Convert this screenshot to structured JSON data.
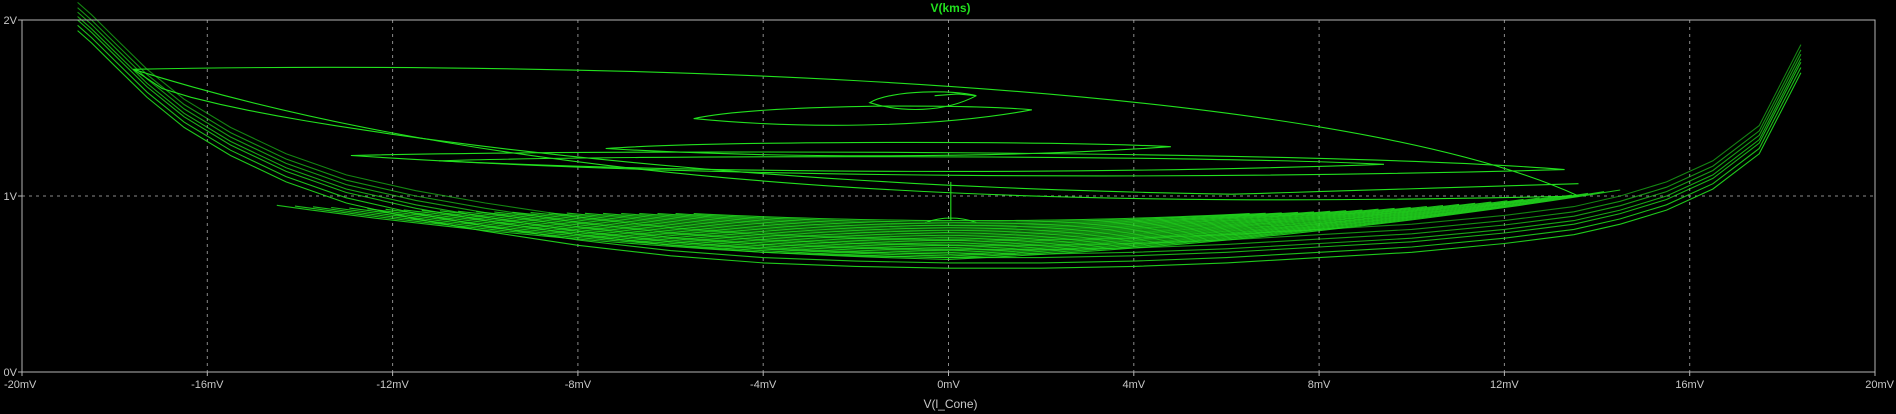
{
  "chart_data": {
    "type": "line",
    "title": "V(kms)",
    "xlabel": "V(l_Cone)",
    "ylabel": "",
    "x_unit": "mV",
    "y_unit": "V",
    "xlim": [
      -20,
      20
    ],
    "ylim": [
      0,
      2
    ],
    "x_ticks": [
      "-20mV",
      "-16mV",
      "-12mV",
      "-8mV",
      "-4mV",
      "0mV",
      "4mV",
      "8mV",
      "12mV",
      "16mV",
      "20mV"
    ],
    "y_ticks": [
      "0V",
      "1V",
      "2V"
    ],
    "x_tick_values": [
      -20,
      -16,
      -12,
      -8,
      -4,
      0,
      4,
      8,
      12,
      16,
      20
    ],
    "y_tick_values": [
      0,
      1,
      2
    ],
    "grid": true,
    "colors": {
      "background": "#000000",
      "trace": "#22e01e",
      "title": "#22e01e",
      "grid": "#8a8a8a"
    },
    "series": [
      {
        "name": "V(kms)",
        "description_points": "approximate x,y samples (mV, V) of the phase-plot trace",
        "x": [
          -18.8,
          -18.5,
          -18.0,
          -17.3,
          -16.5,
          -15.5,
          -14.3,
          -13.0,
          -11.5,
          -10.0,
          -8.0,
          -6.0,
          -4.0,
          -2.0,
          0.0,
          2.0,
          4.0,
          6.0,
          8.0,
          10.0,
          12.0,
          13.5,
          14.5,
          15.5,
          16.5,
          17.5,
          18.4
        ],
        "y": [
          2.0,
          1.93,
          1.8,
          1.62,
          1.45,
          1.29,
          1.14,
          1.02,
          0.93,
          0.86,
          0.78,
          0.72,
          0.68,
          0.66,
          0.65,
          0.65,
          0.66,
          0.68,
          0.71,
          0.74,
          0.79,
          0.84,
          0.9,
          0.98,
          1.1,
          1.3,
          1.76
        ]
      }
    ],
    "spirals": [
      {
        "x_left": -17.6,
        "x_right": 13.6,
        "y_top": 1.72,
        "y_bottom": 1.0
      },
      {
        "x_left": -12.9,
        "x_right": 13.3,
        "y_top": 1.23,
        "y_bottom": 1.15
      },
      {
        "x_left": -11.0,
        "x_right": 9.4,
        "y_top": 1.2,
        "y_bottom": 1.18
      },
      {
        "x_left": -7.4,
        "x_right": 4.8,
        "y_top": 1.27,
        "y_bottom": 1.28
      },
      {
        "x_left": -5.5,
        "x_right": 1.8,
        "y_top": 1.44,
        "y_bottom": 1.49
      },
      {
        "x_left": -1.7,
        "x_right": 0.6,
        "y_top": 1.53,
        "y_bottom": 1.57
      }
    ]
  }
}
